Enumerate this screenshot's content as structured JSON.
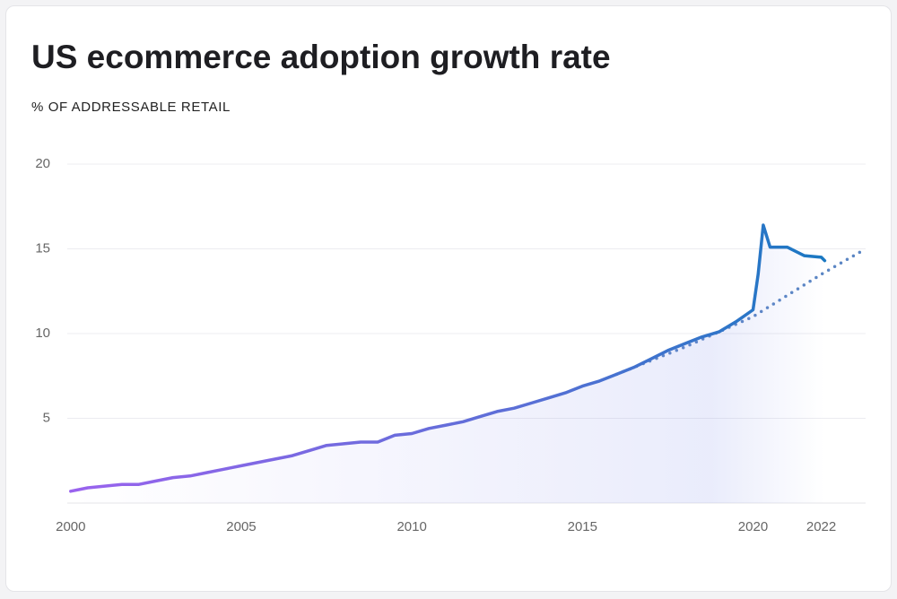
{
  "chart_data": {
    "type": "line",
    "title": "US ecommerce adoption growth rate",
    "subtitle": "% OF ADDRESSABLE RETAIL",
    "xlim": [
      1999.9,
      2023.3
    ],
    "xticks": [
      2000,
      2005,
      2010,
      2015,
      2020,
      2022
    ],
    "ylim": [
      0,
      20
    ],
    "yticks": [
      5,
      10,
      15,
      20
    ],
    "grid": true,
    "series": [
      {
        "color": "#1a78c2",
        "style": "solid",
        "x": [
          2000,
          2000.5,
          2001,
          2001.5,
          2002,
          2002.5,
          2003,
          2003.5,
          2004,
          2004.5,
          2005,
          2005.5,
          2006,
          2006.5,
          2007,
          2007.5,
          2008,
          2008.5,
          2009,
          2009.5,
          2010,
          2010.5,
          2011,
          2011.5,
          2012,
          2012.5,
          2013,
          2013.5,
          2014,
          2014.5,
          2015,
          2015.5,
          2016,
          2016.5,
          2017,
          2017.5,
          2018,
          2018.5,
          2019,
          2019.5,
          2020,
          2020.15,
          2020.3,
          2020.5,
          2021,
          2021.5,
          2022,
          2022.1
        ],
        "values": [
          0.7,
          0.9,
          1.0,
          1.1,
          1.1,
          1.3,
          1.5,
          1.6,
          1.8,
          2.0,
          2.2,
          2.4,
          2.6,
          2.8,
          3.1,
          3.4,
          3.5,
          3.6,
          3.6,
          4.0,
          4.1,
          4.4,
          4.6,
          4.8,
          5.1,
          5.4,
          5.6,
          5.9,
          6.2,
          6.5,
          6.9,
          7.2,
          7.6,
          8.0,
          8.5,
          9.0,
          9.4,
          9.8,
          10.1,
          10.7,
          11.4,
          13.5,
          16.4,
          15.1,
          15.1,
          14.6,
          14.5,
          14.3
        ]
      },
      {
        "color": "#5b86c4",
        "style": "dotted",
        "x": [
          2016,
          2018,
          2020,
          2022,
          2023.3
        ],
        "values": [
          7.6,
          9.2,
          11.0,
          13.5,
          15.0
        ]
      }
    ]
  }
}
